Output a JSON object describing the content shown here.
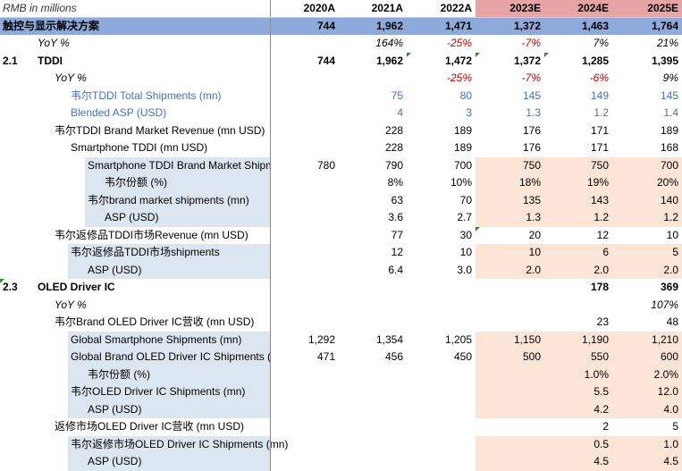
{
  "sheet": {
    "units_note": "RMB in millions",
    "years": [
      "2020A",
      "2021A",
      "2022A",
      "2023E",
      "2024E",
      "2025E"
    ],
    "section_title": "触控与显示解决方案",
    "section_values": [
      "744",
      "1,962",
      "1,471",
      "1,372",
      "1,463",
      "1,764"
    ],
    "section_yoy_label": "YoY %",
    "section_yoy": [
      "",
      "164%",
      "-25%",
      "-7%",
      "7%",
      "21%"
    ],
    "tddi": {
      "number": "2.1",
      "title": "TDDI",
      "values": [
        "744",
        "1,962",
        "1,472",
        "1,372",
        "1,285",
        "1,395"
      ],
      "yoy_label": "YoY %",
      "yoy": [
        "",
        "",
        "-25%",
        "-7%",
        "-6%",
        "9%"
      ],
      "rows": [
        {
          "label": "韦尔TDDI Total Shipments (mn)",
          "values": [
            "",
            "75",
            "80",
            "145",
            "149",
            "145"
          ]
        },
        {
          "label": "Blended ASP (USD)",
          "values": [
            "",
            "4",
            "3",
            "1.3",
            "1.2",
            "1.4"
          ]
        },
        {
          "label": "韦尔TDDI Brand Market Revenue (mn USD)",
          "values": [
            "",
            "228",
            "189",
            "176",
            "171",
            "189"
          ]
        },
        {
          "label": "Smartphone TDDI (mn USD)",
          "values": [
            "",
            "228",
            "189",
            "176",
            "171",
            "168"
          ]
        },
        {
          "label": "Smartphone TDDI Brand Market Shipm",
          "values": [
            "780",
            "790",
            "700",
            "750",
            "750",
            "700"
          ]
        },
        {
          "label": "韦尔份额 (%)",
          "values": [
            "",
            "8%",
            "10%",
            "18%",
            "19%",
            "20%"
          ]
        },
        {
          "label": "韦尔brand market shipments (mn)",
          "values": [
            "",
            "63",
            "70",
            "135",
            "143",
            "140"
          ]
        },
        {
          "label": "ASP (USD)",
          "values": [
            "",
            "3.6",
            "2.7",
            "1.3",
            "1.2",
            "1.2"
          ]
        },
        {
          "label": "韦尔返修品TDDI市场Revenue (mn USD)",
          "values": [
            "",
            "77",
            "30",
            "20",
            "12",
            "10"
          ]
        },
        {
          "label": "韦尔返修品TDDI市场shipments",
          "values": [
            "",
            "12",
            "10",
            "10",
            "6",
            "5"
          ]
        },
        {
          "label": "ASP (USD)",
          "values": [
            "",
            "6.4",
            "3.0",
            "2.0",
            "2.0",
            "2.0"
          ]
        }
      ]
    },
    "oled": {
      "number": "2.3",
      "title": "OLED Driver IC",
      "values": [
        "",
        "",
        "",
        "",
        "178",
        "369"
      ],
      "yoy_label": "YoY %",
      "yoy": [
        "",
        "",
        "",
        "",
        "",
        "107%"
      ],
      "rows": [
        {
          "label": "韦尔Brand OLED Driver IC营收 (mn USD)",
          "values": [
            "",
            "",
            "",
            "",
            "23",
            "48"
          ]
        },
        {
          "label": "Global Smartphone Shipments (mn)",
          "values": [
            "1,292",
            "1,354",
            "1,205",
            "1,150",
            "1,190",
            "1,210"
          ]
        },
        {
          "label": "Global Brand OLED Driver IC Shipments (m",
          "values": [
            "471",
            "456",
            "450",
            "500",
            "550",
            "600"
          ]
        },
        {
          "label": "韦尔份额 (%)",
          "values": [
            "",
            "",
            "",
            "",
            "1.0%",
            "2.0%"
          ]
        },
        {
          "label": "韦尔OLED Driver IC Shipments (mn)",
          "values": [
            "",
            "",
            "",
            "",
            "5.5",
            "12.0"
          ]
        },
        {
          "label": "ASP (USD)",
          "values": [
            "",
            "",
            "",
            "",
            "4.2",
            "4.0"
          ]
        },
        {
          "label": "返修市场OLED Driver IC营收 (mn USD)",
          "values": [
            "",
            "",
            "",
            "",
            "2",
            "5"
          ]
        },
        {
          "label": "韦尔返修市场OLED Driver IC Shipments (mn)",
          "values": [
            "",
            "",
            "",
            "",
            "0.5",
            "1.0"
          ]
        },
        {
          "label": "ASP (USD)",
          "values": [
            "",
            "",
            "",
            "",
            "4.5",
            "4.5"
          ]
        }
      ]
    }
  }
}
